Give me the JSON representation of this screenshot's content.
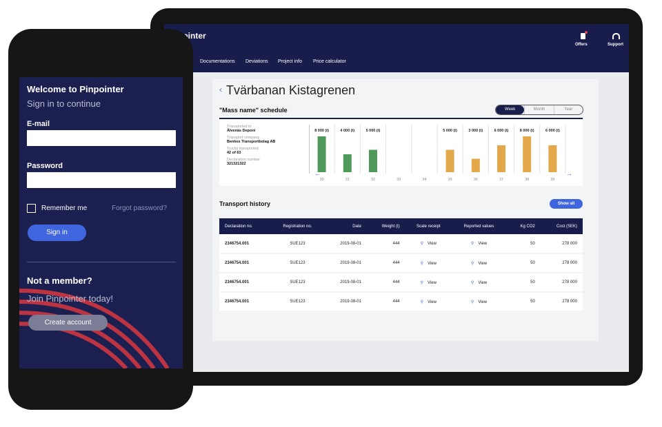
{
  "tablet": {
    "brand": "pointer",
    "header_actions": [
      "Offers",
      "Support"
    ],
    "nav": [
      "Documentations",
      "Deviations",
      "Project info",
      "Price calculator"
    ],
    "page_title": "Tvärbanan Kistagrenen",
    "schedule": {
      "title": "\"Mass name\" schedule",
      "periods": [
        "Week",
        "Month",
        "Year"
      ],
      "active_period_index": 0,
      "info": [
        {
          "label": "Transported to",
          "value": "Älvenäs Deponi"
        },
        {
          "label": "Transport company",
          "value": "Benkes Transportbolag AB"
        },
        {
          "label": "Trucks transported",
          "value": "42 of 63"
        },
        {
          "label": "Declaration number",
          "value": "321321322"
        }
      ],
      "chart": {
        "type": "bar",
        "categories": [
          "30",
          "31",
          "32",
          "33",
          "34",
          "35",
          "36",
          "37",
          "38",
          "39"
        ],
        "values": [
          8000,
          4000,
          5000,
          null,
          null,
          5000,
          3000,
          6000,
          8000,
          6000
        ],
        "value_labels": [
          "8 000 (t)",
          "4 000 (t)",
          "5 000 (t)",
          null,
          null,
          "5 000 (t)",
          "3 000 (t)",
          "6 000 (t)",
          "8 000 (t)",
          "6 000 (t)"
        ],
        "colors": [
          "#4f9a5a",
          "#4f9a5a",
          "#4f9a5a",
          null,
          null,
          "#e3a84a",
          "#e3a84a",
          "#e3a84a",
          "#e3a84a",
          "#e3a84a"
        ]
      }
    },
    "history": {
      "title": "Transport history",
      "button": "Show all",
      "columns": [
        "Declaration no.",
        "Registration no.",
        "Date",
        "Weight (t)",
        "Scale receipt",
        "Reported values",
        "Kg CO2",
        "Cost (SEK)"
      ],
      "rows": [
        [
          "2346754.001",
          "SUE123",
          "2019-08-01",
          "444",
          "View",
          "View",
          "50",
          "278 000"
        ],
        [
          "2346754.001",
          "SUE123",
          "2019-08-01",
          "444",
          "View",
          "View",
          "50",
          "278 000"
        ],
        [
          "2346754.001",
          "SUE123",
          "2019-08-01",
          "444",
          "View",
          "View",
          "50",
          "278 000"
        ],
        [
          "2346754.001",
          "SUE123",
          "2019-08-01",
          "444",
          "View",
          "View",
          "50",
          "278 000"
        ]
      ]
    }
  },
  "phone": {
    "title": "Welcome to Pinpointer",
    "subtitle": "Sign in to continue",
    "email_label": "E-mail",
    "password_label": "Password",
    "remember": "Remember me",
    "forgot": "Forgot password?",
    "signin": "Sign in",
    "not_member": "Not a member?",
    "join": "Join Pinpointer today!",
    "create": "Create account"
  }
}
